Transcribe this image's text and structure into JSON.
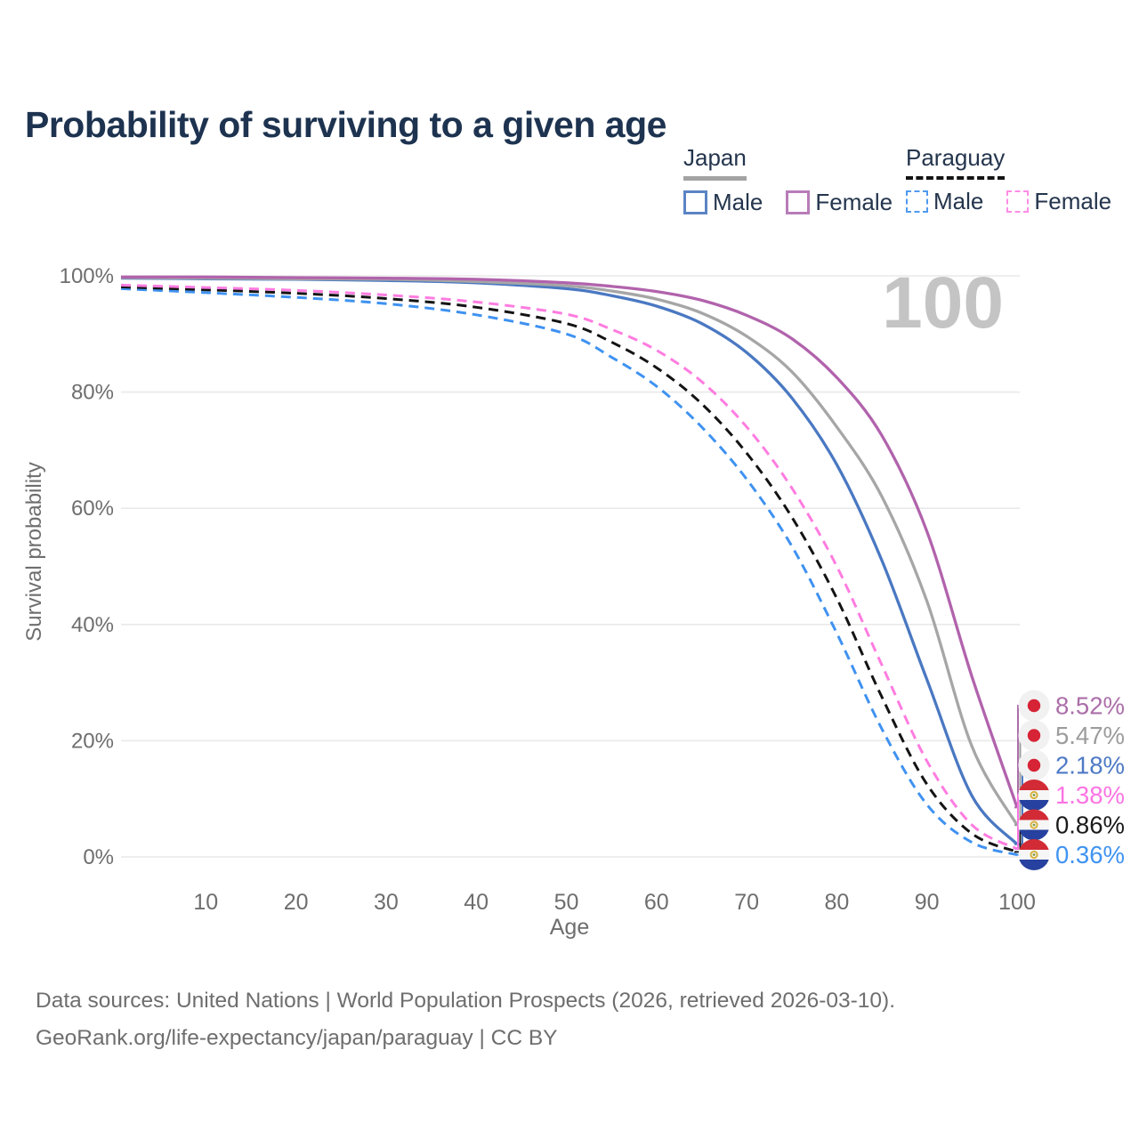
{
  "title": "Probability of surviving to a given age",
  "watermark_age": "100",
  "legend": {
    "groups": [
      {
        "country": "Japan",
        "line_style": "solid",
        "underline_color": "#a3a3a3",
        "items": [
          {
            "label": "Male",
            "color": "#5b84c4",
            "dashed": false
          },
          {
            "label": "Female",
            "color": "#b87cb8",
            "dashed": false
          }
        ]
      },
      {
        "country": "Paraguay",
        "line_style": "dashed",
        "underline_color": "#141414",
        "items": [
          {
            "label": "Male",
            "color": "#4f99f0",
            "dashed": true
          },
          {
            "label": "Female",
            "color": "#ff8ce6",
            "dashed": true
          }
        ]
      }
    ]
  },
  "chart_data": {
    "type": "line",
    "title": "Probability of surviving to a given age",
    "xlabel": "Age",
    "ylabel": "Survival probability",
    "xlim": [
      0,
      100
    ],
    "ylim": [
      0,
      100
    ],
    "grid": true,
    "x_ticks": [
      10,
      20,
      30,
      40,
      50,
      60,
      70,
      80,
      90,
      100
    ],
    "y_ticks": [
      "0%",
      "20%",
      "40%",
      "60%",
      "80%",
      "100%"
    ],
    "y_tick_values": [
      0,
      20,
      40,
      60,
      80,
      100
    ],
    "x": [
      0,
      10,
      20,
      30,
      40,
      50,
      55,
      60,
      65,
      70,
      75,
      80,
      85,
      90,
      95,
      100
    ],
    "series": [
      {
        "name": "Paraguay Male",
        "country": "Paraguay",
        "sex": "Male",
        "color": "#3f92f1",
        "dashed": true,
        "values": [
          97.8,
          97.1,
          96.3,
          95.2,
          93.3,
          90.0,
          86.0,
          81.0,
          74.0,
          65.0,
          53.5,
          38.5,
          22.0,
          9.0,
          2.5,
          0.36
        ]
      },
      {
        "name": "Paraguay Total",
        "country": "Paraguay",
        "sex": "Both",
        "color": "#141414",
        "dashed": true,
        "values": [
          98.1,
          97.6,
          97.0,
          96.1,
          94.6,
          91.8,
          88.6,
          84.2,
          78.0,
          69.5,
          58.5,
          44.5,
          27.5,
          12.5,
          4.0,
          0.86
        ]
      },
      {
        "name": "Paraguay Female",
        "country": "Paraguay",
        "sex": "Female",
        "color": "#ff7ce0",
        "dashed": true,
        "values": [
          98.4,
          98.0,
          97.5,
          96.7,
          95.5,
          93.4,
          90.8,
          87.2,
          81.8,
          74.0,
          63.5,
          50.0,
          33.0,
          16.5,
          5.5,
          1.38
        ]
      },
      {
        "name": "Japan Male",
        "country": "Japan",
        "sex": "Male",
        "color": "#4a78c2",
        "dashed": false,
        "values": [
          99.6,
          99.5,
          99.4,
          99.2,
          98.8,
          97.8,
          96.6,
          94.8,
          91.8,
          86.8,
          79.0,
          67.5,
          51.0,
          30.5,
          10.5,
          2.18
        ]
      },
      {
        "name": "Japan Total",
        "country": "Japan",
        "sex": "Both",
        "color": "#a6a6a6",
        "dashed": false,
        "values": [
          99.7,
          99.6,
          99.5,
          99.4,
          99.0,
          98.3,
          97.4,
          96.0,
          93.6,
          89.6,
          83.5,
          74.0,
          62.0,
          44.0,
          19.0,
          5.47
        ]
      },
      {
        "name": "Japan Female",
        "country": "Japan",
        "sex": "Female",
        "color": "#b163ac",
        "dashed": false,
        "values": [
          99.8,
          99.8,
          99.7,
          99.6,
          99.4,
          98.8,
          98.2,
          97.3,
          95.8,
          93.2,
          89.2,
          82.5,
          72.5,
          56.0,
          31.0,
          8.52
        ]
      }
    ],
    "end_labels": [
      {
        "text": "8.52%",
        "value": 8.52,
        "color": "#ab6fa9",
        "flag": "japan",
        "series": "Japan Female"
      },
      {
        "text": "5.47%",
        "value": 5.47,
        "color": "#9c9c9c",
        "flag": "japan",
        "series": "Japan Total"
      },
      {
        "text": "2.18%",
        "value": 2.18,
        "color": "#4e7ac5",
        "flag": "japan",
        "series": "Japan Male"
      },
      {
        "text": "1.38%",
        "value": 1.38,
        "color": "#fb74e3",
        "flag": "paraguay",
        "series": "Paraguay Female"
      },
      {
        "text": "0.86%",
        "value": 0.86,
        "color": "#1a1a1a",
        "flag": "paraguay",
        "series": "Paraguay Total"
      },
      {
        "text": "0.36%",
        "value": 0.36,
        "color": "#3f93f2",
        "flag": "paraguay",
        "series": "Paraguay Male"
      }
    ],
    "legend_position": "top-right"
  },
  "footer": {
    "line1": "Data sources: United Nations | World Population Prospects (2026, retrieved 2026-03-10).",
    "line2": "GeoRank.org/life-expectancy/japan/paraguay | CC BY"
  }
}
